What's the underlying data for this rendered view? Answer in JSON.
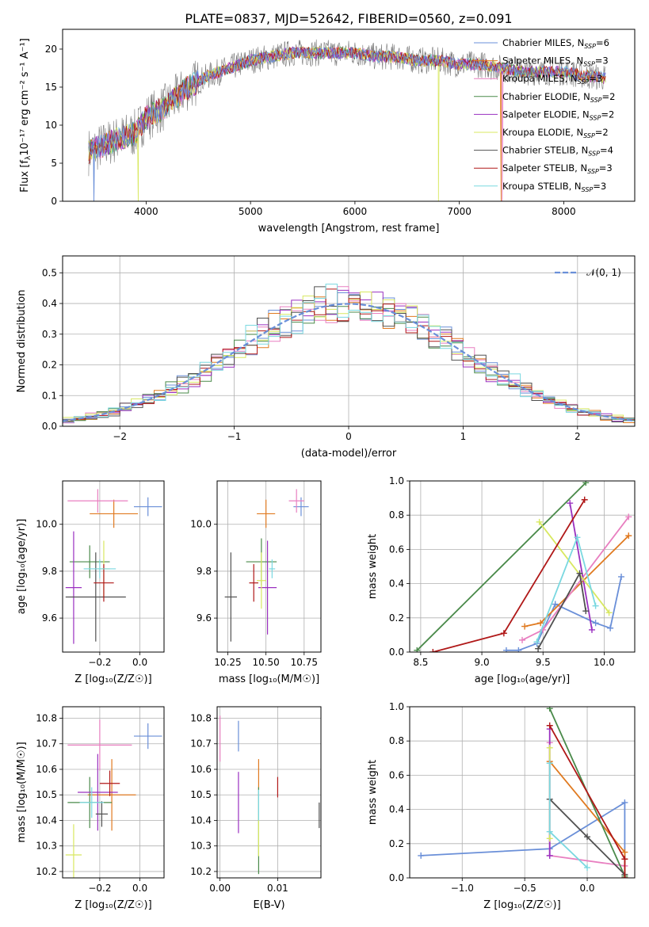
{
  "title": "PLATE=0837, MJD=52642, FIBERID=0560, z=0.091",
  "colors": [
    "#6a8fd8",
    "#e07a20",
    "#e87fc0",
    "#4a8a4a",
    "#9a30c0",
    "#d8e860",
    "#505050",
    "#b01818",
    "#7ad8e0"
  ],
  "legend": [
    {
      "label": "Chabrier MILES, N",
      "sub": "SSP",
      "eq": "=6"
    },
    {
      "label": "Salpeter MILES, N",
      "sub": "SSP",
      "eq": "=3"
    },
    {
      "label": "Kroupa MILES, N",
      "sub": "SSP",
      "eq": "=3"
    },
    {
      "label": "Chabrier ELODIE, N",
      "sub": "SSP",
      "eq": "=2"
    },
    {
      "label": "Salpeter ELODIE, N",
      "sub": "SSP",
      "eq": "=2"
    },
    {
      "label": "Kroupa ELODIE, N",
      "sub": "SSP",
      "eq": "=2"
    },
    {
      "label": "Chabrier STELIB, N",
      "sub": "SSP",
      "eq": "=4"
    },
    {
      "label": "Salpeter STELIB, N",
      "sub": "SSP",
      "eq": "=3"
    },
    {
      "label": "Kroupa STELIB, N",
      "sub": "SSP",
      "eq": "=3"
    }
  ],
  "chart_data": [
    {
      "id": "spectrum",
      "type": "line",
      "xlabel": "wavelength [Angstrom, rest frame]",
      "ylabel_main": "Flux [f",
      "ylabel_sub": "λ",
      "ylabel_rest": "10⁻¹⁷ erg cm⁻² s⁻¹ A⁻¹]",
      "xlim": [
        3200,
        8680
      ],
      "ylim": [
        0,
        22.6
      ],
      "xticks": [
        4000,
        5000,
        6000,
        7000,
        8000
      ],
      "yticks": [
        0,
        5,
        10,
        15,
        20
      ],
      "grid": false,
      "legend": "right",
      "continuum_x": [
        3450,
        3700,
        3900,
        4000,
        4200,
        4400,
        4600,
        4800,
        5000,
        5200,
        5400,
        5600,
        5800,
        6000,
        6200,
        6400,
        6600,
        6800,
        7000,
        7200,
        7400,
        7600,
        7800,
        8000,
        8200,
        8400
      ],
      "continuum_y": [
        6.5,
        8,
        9,
        11,
        12.5,
        15,
        16.5,
        17.5,
        18.5,
        19,
        19.5,
        19.5,
        19.5,
        19.5,
        19,
        19,
        18.5,
        18.5,
        18,
        18,
        17.5,
        17,
        17,
        17,
        16.5,
        16.2
      ]
    },
    {
      "id": "residuals",
      "type": "histogram",
      "xlabel": "(data-model)/error",
      "ylabel": "Normed distribution",
      "xlim": [
        -2.5,
        2.5
      ],
      "ylim": [
        0,
        0.555
      ],
      "xticks": [
        -2,
        -1,
        0,
        1,
        2
      ],
      "xticklabels": [
        "−2",
        "−1",
        "0",
        "1",
        "2"
      ],
      "yticks": [
        0,
        0.1,
        0.2,
        0.3,
        0.4,
        0.5
      ],
      "yticklabels": [
        "0.0",
        "0.1",
        "0.2",
        "0.3",
        "0.4",
        "0.5"
      ],
      "grid": true,
      "legend": "top-right",
      "gauss_label": "𝒩(0, 1)"
    },
    {
      "id": "z-age",
      "type": "scatter",
      "xlabel": "Z [log₁₀(Z/Z☉)]",
      "ylabel": "age  [log₁₀(age/yr)]",
      "xlim": [
        -0.385,
        0.12
      ],
      "ylim": [
        9.455,
        10.185
      ],
      "xticks": [
        -0.2,
        0
      ],
      "xticklabels": [
        "−0.2",
        "0.0"
      ],
      "yticks": [
        9.6,
        9.8,
        10.0
      ],
      "yticklabels": [
        "9.6",
        "9.8",
        "10.0"
      ],
      "points": [
        {
          "x": 0.04,
          "y": 10.075,
          "xerr": 0.07,
          "yerr": 0.04
        },
        {
          "x": -0.13,
          "y": 10.045,
          "xerr": 0.12,
          "yerr": 0.06
        },
        {
          "x": -0.21,
          "y": 10.1,
          "xerr": 0.15,
          "yerr": 0.05
        },
        {
          "x": -0.25,
          "y": 9.84,
          "xerr": 0.1,
          "yerr": 0.07
        },
        {
          "x": -0.33,
          "y": 9.73,
          "xerr": 0.04,
          "yerr": 0.24
        },
        {
          "x": -0.18,
          "y": 9.81,
          "xerr": 0.03,
          "yerr": 0.12
        },
        {
          "x": -0.22,
          "y": 9.69,
          "xerr": 0.15,
          "yerr": 0.19
        },
        {
          "x": -0.18,
          "y": 9.75,
          "xerr": 0.05,
          "yerr": 0.08
        },
        {
          "x": -0.2,
          "y": 9.81,
          "xerr": 0.08,
          "yerr": 0.04
        }
      ]
    },
    {
      "id": "mass-age",
      "type": "scatter",
      "xlabel": "mass [log₁₀(M/M☉)]",
      "ylabel": "",
      "xlim": [
        10.18,
        10.86
      ],
      "ylim": [
        9.455,
        10.185
      ],
      "xticks": [
        10.25,
        10.5,
        10.75
      ],
      "xticklabels": [
        "10.25",
        "10.50",
        "10.75"
      ],
      "yticks": [
        9.6,
        9.8,
        10.0
      ],
      "yticklabels": [
        "9.6",
        "9.8",
        "10.0"
      ],
      "points": [
        {
          "x": 10.73,
          "y": 10.075,
          "xerr": 0.05,
          "yerr": 0.04
        },
        {
          "x": 10.5,
          "y": 10.045,
          "xerr": 0.06,
          "yerr": 0.06
        },
        {
          "x": 10.7,
          "y": 10.1,
          "xerr": 0.05,
          "yerr": 0.05
        },
        {
          "x": 10.47,
          "y": 9.84,
          "xerr": 0.1,
          "yerr": 0.1
        },
        {
          "x": 10.51,
          "y": 9.73,
          "xerr": 0.06,
          "yerr": 0.2
        },
        {
          "x": 10.47,
          "y": 9.76,
          "xerr": 0.03,
          "yerr": 0.12
        },
        {
          "x": 10.27,
          "y": 9.69,
          "xerr": 0.04,
          "yerr": 0.19
        },
        {
          "x": 10.42,
          "y": 9.75,
          "xerr": 0.03,
          "yerr": 0.08
        },
        {
          "x": 10.54,
          "y": 9.81,
          "xerr": 0.02,
          "yerr": 0.04
        }
      ]
    },
    {
      "id": "age-weight",
      "type": "line",
      "xlabel": "age  [log₁₀(age/yr)]",
      "ylabel": "mass weight",
      "xlim": [
        8.41,
        10.25
      ],
      "ylim": [
        0,
        1
      ],
      "xticks": [
        8.5,
        9.0,
        9.5,
        10.0
      ],
      "xticklabels": [
        "8.5",
        "9.0",
        "9.5",
        "10.0"
      ],
      "yticks": [
        0,
        0.2,
        0.4,
        0.6,
        0.8,
        1.0
      ],
      "yticklabels": [
        "0.0",
        "0.2",
        "0.4",
        "0.6",
        "0.8",
        "1.0"
      ],
      "series": [
        {
          "x": [
            9.2,
            9.3,
            9.45,
            9.6,
            9.93,
            10.05,
            10.14
          ],
          "y": [
            0.01,
            0.01,
            0.05,
            0.28,
            0.17,
            0.14,
            0.44
          ]
        },
        {
          "x": [
            9.35,
            9.48,
            10.2
          ],
          "y": [
            0.15,
            0.17,
            0.68
          ]
        },
        {
          "x": [
            9.33,
            9.5,
            10.2
          ],
          "y": [
            0.07,
            0.13,
            0.79
          ]
        },
        {
          "x": [
            8.47,
            9.85
          ],
          "y": [
            0.01,
            0.99
          ]
        },
        {
          "x": [
            9.72,
            9.9
          ],
          "y": [
            0.87,
            0.13
          ]
        },
        {
          "x": [
            9.47,
            10.04
          ],
          "y": [
            0.76,
            0.23
          ]
        },
        {
          "x": [
            9.46,
            9.8,
            9.85
          ],
          "y": [
            0.02,
            0.46,
            0.24
          ]
        },
        {
          "x": [
            8.6,
            9.18,
            9.84
          ],
          "y": [
            0.0,
            0.11,
            0.89
          ]
        },
        {
          "x": [
            9.45,
            9.78,
            9.93
          ],
          "y": [
            0.06,
            0.67,
            0.27
          ]
        }
      ]
    },
    {
      "id": "z-mass",
      "type": "scatter",
      "xlabel": "Z [log₁₀(Z/Z☉)]",
      "ylabel": "mass [log₁₀(M/M☉)]",
      "xlim": [
        -0.385,
        0.12
      ],
      "ylim": [
        10.175,
        10.845
      ],
      "xticks": [
        -0.2,
        0
      ],
      "xticklabels": [
        "−0.2",
        "0.0"
      ],
      "yticks": [
        10.2,
        10.3,
        10.4,
        10.5,
        10.6,
        10.7,
        10.8
      ],
      "yticklabels": [
        "10.2",
        "10.3",
        "10.4",
        "10.5",
        "10.6",
        "10.7",
        "10.8"
      ],
      "points": [
        {
          "x": 0.04,
          "y": 10.73,
          "xerr": 0.07,
          "yerr": 0.05
        },
        {
          "x": -0.14,
          "y": 10.5,
          "xerr": 0.12,
          "yerr": 0.14
        },
        {
          "x": -0.2,
          "y": 10.695,
          "xerr": 0.16,
          "yerr": 0.1
        },
        {
          "x": -0.25,
          "y": 10.47,
          "xerr": 0.11,
          "yerr": 0.1
        },
        {
          "x": -0.21,
          "y": 10.51,
          "xerr": 0.1,
          "yerr": 0.15
        },
        {
          "x": -0.33,
          "y": 10.265,
          "xerr": 0.04,
          "yerr": 0.12
        },
        {
          "x": -0.19,
          "y": 10.425,
          "xerr": 0.03,
          "yerr": 0.05
        },
        {
          "x": -0.15,
          "y": 10.545,
          "xerr": 0.05,
          "yerr": 0.05
        },
        {
          "x": -0.24,
          "y": 10.47,
          "xerr": 0.06,
          "yerr": 0.06
        }
      ]
    },
    {
      "id": "ebv-mass",
      "type": "scatter",
      "xlabel": "E(B-V)",
      "ylabel": "",
      "xlim": [
        -0.0005,
        0.0175
      ],
      "ylim": [
        10.175,
        10.845
      ],
      "xticks": [
        0,
        0.01
      ],
      "xticklabels": [
        "0.00",
        "0.01"
      ],
      "yticks": [
        10.2,
        10.3,
        10.4,
        10.5,
        10.6,
        10.7,
        10.8
      ],
      "yticklabels": [
        "10.2",
        "10.3",
        "10.4",
        "10.5",
        "10.6",
        "10.7",
        "10.8"
      ],
      "points": [
        {
          "x": 0.0032,
          "y": 10.73,
          "xerr": 0,
          "yerr": 0.06
        },
        {
          "x": 0.0067,
          "y": 10.58,
          "xerr": 0,
          "yerr": 0.06
        },
        {
          "x": 0.0,
          "y": 10.72,
          "xerr": 0,
          "yerr": 0.09
        },
        {
          "x": 0.0067,
          "y": 10.36,
          "xerr": 0,
          "yerr": 0.17
        },
        {
          "x": 0.0032,
          "y": 10.47,
          "xerr": 0,
          "yerr": 0.12
        },
        {
          "x": 0.0067,
          "y": 10.34,
          "xerr": 0,
          "yerr": 0.08
        },
        {
          "x": 0.0172,
          "y": 10.42,
          "xerr": 0,
          "yerr": 0.05
        },
        {
          "x": 0.01,
          "y": 10.53,
          "xerr": 0,
          "yerr": 0.04
        },
        {
          "x": 0.0067,
          "y": 10.46,
          "xerr": 0,
          "yerr": 0.06
        }
      ]
    },
    {
      "id": "z-weight",
      "type": "line",
      "xlabel": "Z [log₁₀(Z/Z☉)]",
      "ylabel": "mass weight",
      "xlim": [
        -1.42,
        0.38
      ],
      "ylim": [
        0,
        1
      ],
      "xticks": [
        -1.0,
        -0.5,
        0.0
      ],
      "xticklabels": [
        "−1.0",
        "−0.5",
        "0.0"
      ],
      "yticks": [
        0,
        0.2,
        0.4,
        0.6,
        0.8,
        1.0
      ],
      "yticklabels": [
        "0.0",
        "0.2",
        "0.4",
        "0.6",
        "0.8",
        "1.0"
      ],
      "series": [
        {
          "x": [
            -1.33,
            -0.3,
            0.3,
            0.3
          ],
          "y": [
            0.13,
            0.17,
            0.44,
            0.0
          ]
        },
        {
          "x": [
            -0.3,
            0.3,
            0.3
          ],
          "y": [
            0.68,
            0.15,
            0.0
          ]
        },
        {
          "x": [
            -0.3,
            -0.3,
            0.3
          ],
          "y": [
            0.79,
            0.13,
            0.07
          ]
        },
        {
          "x": [
            -0.3,
            0.3
          ],
          "y": [
            0.99,
            0.01
          ]
        },
        {
          "x": [
            -0.3,
            -0.3
          ],
          "y": [
            0.87,
            0.13
          ]
        },
        {
          "x": [
            -0.3,
            -0.3
          ],
          "y": [
            0.76,
            0.23
          ]
        },
        {
          "x": [
            -0.3,
            0.0,
            0.3
          ],
          "y": [
            0.46,
            0.24,
            0.02
          ]
        },
        {
          "x": [
            -0.3,
            0.3,
            0.3
          ],
          "y": [
            0.89,
            0.11,
            0.0
          ]
        },
        {
          "x": [
            -0.3,
            -0.3,
            0.0
          ],
          "y": [
            0.67,
            0.27,
            0.06
          ]
        }
      ]
    }
  ]
}
